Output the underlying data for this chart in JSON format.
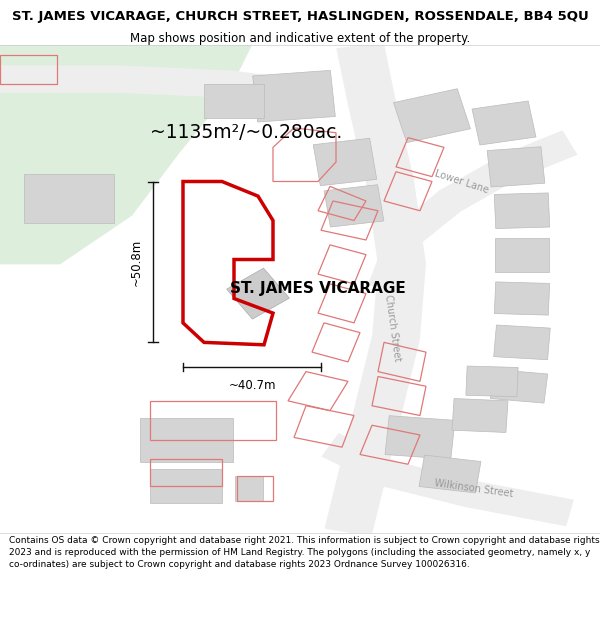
{
  "title": "ST. JAMES VICARAGE, CHURCH STREET, HASLINGDEN, ROSSENDALE, BB4 5QU",
  "subtitle": "Map shows position and indicative extent of the property.",
  "footer": "Contains OS data © Crown copyright and database right 2021. This information is subject to Crown copyright and database rights 2023 and is reproduced with the permission of HM Land Registry. The polygons (including the associated geometry, namely x, y co-ordinates) are subject to Crown copyright and database rights 2023 Ordnance Survey 100026316.",
  "area_label": "~1135m²/~0.280ac.",
  "width_label": "~40.7m",
  "height_label": "~50.8m",
  "property_label": "ST. JAMES VICARAGE",
  "title_fontsize": 9.5,
  "subtitle_fontsize": 8.5,
  "footer_fontsize": 6.5,
  "map_bg": "#f5f5f5",
  "green_color": "#ddeedd",
  "building_fill": "#d4d4d4",
  "building_edge": "#bbbbbb",
  "road_outline_color": "#e8b0b0",
  "main_poly_color": "#cc0000",
  "main_poly_lw": 2.5,
  "nearby_poly_color": "#e07070",
  "nearby_poly_lw": 0.8,
  "street_label_color": "#999999",
  "annotation_color": "#111111"
}
